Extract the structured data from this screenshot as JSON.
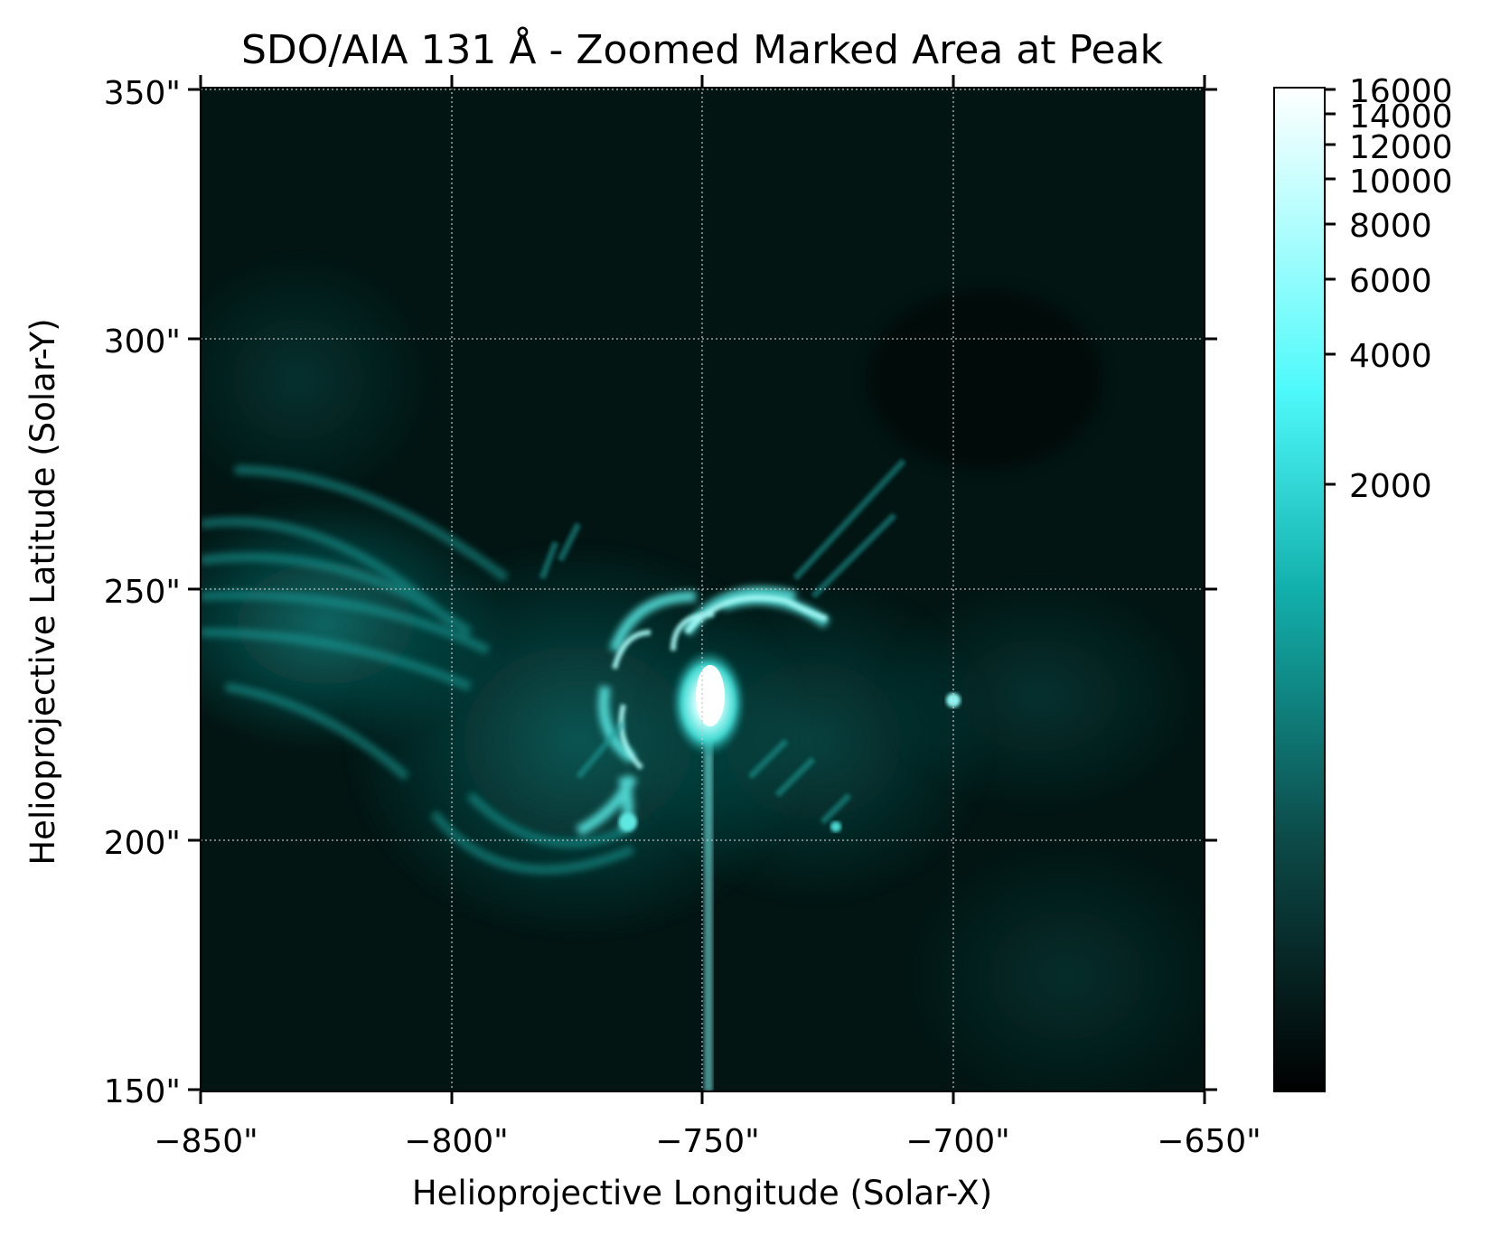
{
  "figure": {
    "title": "SDO/AIA 131 Å - Zoomed Marked Area at Peak",
    "xlabel": "Helioprojective Longitude (Solar-X)",
    "ylabel": "Helioprojective Latitude (Solar-Y)"
  },
  "axes": {
    "x_ticks": [
      "−850\"",
      "−800\"",
      "−750\"",
      "−700\"",
      "−650\""
    ],
    "y_ticks": [
      "350\"",
      "300\"",
      "250\"",
      "200\"",
      "150\""
    ],
    "x_range": [
      -850,
      -650
    ],
    "y_range": [
      150,
      350
    ],
    "grid": true
  },
  "colorbar": {
    "ticks": [
      "16000",
      "14000",
      "12000",
      "10000",
      "8000",
      "6000",
      "4000",
      "2000"
    ],
    "scale": "log-like",
    "colormap": "sdoaia131"
  },
  "colors": {
    "background": "#000000",
    "teal_mid": "#0a9a9a",
    "teal_bright": "#6ffcff",
    "white": "#ffffff"
  }
}
